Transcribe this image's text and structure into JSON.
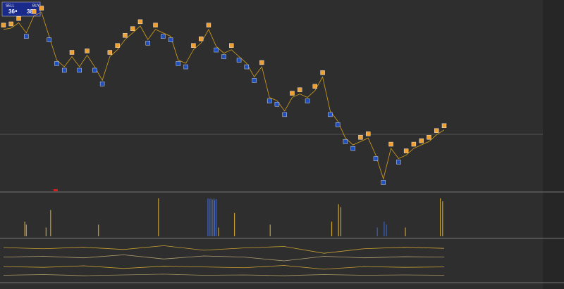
{
  "trade_panel": {
    "sell_label": "SELL",
    "buy_label": "BUY",
    "sell_price": "36⁸",
    "buy_price": "38⁰"
  },
  "chart_data": [
    {
      "type": "line",
      "color": "#d4a017",
      "ylim": [
        0,
        100
      ],
      "values": [
        86.9,
        87.6,
        90.6,
        85.0,
        94.4,
        96.3,
        83.1,
        70.0,
        66.3,
        71.9,
        66.3,
        72.7,
        66.3,
        58.8,
        71.9,
        75.7,
        81.3,
        85.0,
        88.8,
        81.3,
        86.9,
        85.0,
        83.1,
        70.0,
        68.2,
        75.7,
        79.4,
        86.9,
        77.5,
        73.8,
        75.7,
        71.9,
        68.2,
        60.7,
        66.3,
        49.4,
        47.6,
        41.9,
        49.4,
        51.3,
        49.4,
        53.2,
        60.7,
        41.9,
        36.3,
        27.0,
        23.2,
        25.1,
        27.0,
        17.6,
        4.5,
        21.3,
        15.7,
        17.6,
        21.3,
        23.2,
        25.1,
        28.8,
        31.5
      ],
      "up_color": "#f0a030",
      "down_color": "#2050c0"
    },
    {
      "type": "bar",
      "xlim": [
        0,
        58
      ],
      "ylim": [
        0,
        70
      ],
      "series": [
        {
          "color": "#c8a030",
          "x": [
            2.8,
            3.0,
            5.6,
            6.2,
            12.5,
            20.4,
            28.3,
            30.4,
            35.1,
            43.2,
            44.1,
            44.4,
            52.9,
            57.5,
            57.8
          ],
          "values": [
            25,
            20,
            15,
            45,
            20,
            65,
            15,
            40,
            20,
            25,
            55,
            50,
            15,
            65,
            60
          ]
        },
        {
          "color": "#4060b0",
          "x": [
            26.9,
            27.1,
            27.3,
            27.5,
            27.7,
            27.8,
            28.0,
            49.2,
            50.1,
            50.4
          ],
          "values": [
            65,
            64,
            65,
            63,
            65,
            62,
            64,
            15,
            25,
            20
          ]
        }
      ]
    },
    {
      "type": "line",
      "ylim": [
        0,
        100
      ],
      "series": [
        {
          "color": "#c8a030",
          "values": [
            85,
            82,
            86,
            80,
            90,
            78,
            84,
            88,
            70,
            82,
            86,
            83
          ]
        },
        {
          "color": "#b0a070",
          "values": [
            60,
            62,
            58,
            66,
            55,
            63,
            60,
            50,
            62,
            58,
            61,
            60
          ]
        },
        {
          "color": "#c8a030",
          "values": [
            35,
            33,
            37,
            30,
            36,
            34,
            32,
            38,
            28,
            35,
            33,
            34
          ]
        },
        {
          "color": "#a09060",
          "values": [
            12,
            14,
            11,
            13,
            15,
            12,
            13,
            11,
            14,
            12,
            13,
            12
          ]
        }
      ]
    }
  ]
}
